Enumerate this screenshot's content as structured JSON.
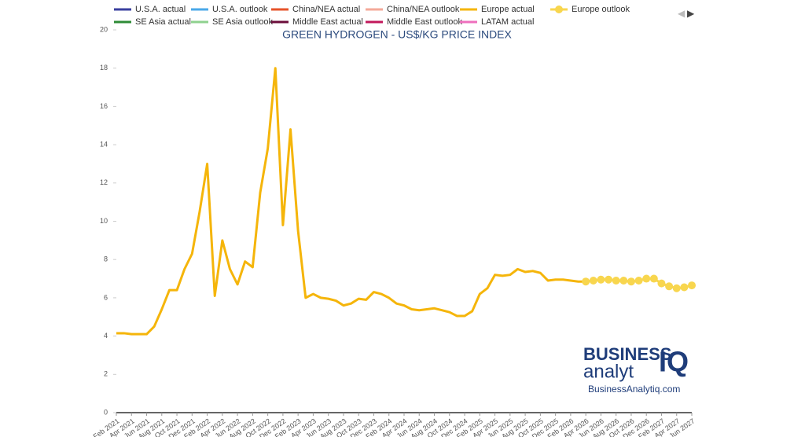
{
  "chart_data": {
    "type": "line",
    "title": "GREEN HYDROGEN - US$/KG PRICE INDEX",
    "categories": [
      "Feb 2021",
      null,
      "Apr 2021",
      null,
      "Jun 2021",
      null,
      "Aug 2021",
      null,
      "Oct 2021",
      null,
      "Dec 2021",
      null,
      "Feb 2022",
      null,
      "Apr 2022",
      null,
      "Jun 2022",
      null,
      "Aug 2022",
      null,
      "Oct 2022",
      null,
      "Dec 2022",
      null,
      "Feb 2023",
      null,
      "Apr 2023",
      null,
      "Jun 2023",
      null,
      "Aug 2023",
      null,
      "Oct 2023",
      null,
      "Dec 2023",
      null,
      "Feb 2024",
      null,
      "Apr 2024",
      null,
      "Jun 2024",
      null,
      "Aug 2024",
      null,
      "Oct 2024",
      null,
      "Dec 2024",
      null,
      "Feb 2025",
      null,
      "Apr 2025",
      null,
      "Jun 2025",
      null,
      "Aug 2025",
      null,
      "Oct 2025",
      null,
      "Dec 2025",
      null,
      "Feb 2026",
      null,
      "Apr 2026",
      null,
      "Jun 2026",
      null,
      "Aug 2026",
      null,
      "Oct 2026",
      null,
      "Dec 2026",
      null,
      "Feb 2027",
      null,
      "Apr 2027",
      null,
      "Jun 2027"
    ],
    "ylim": [
      0,
      20
    ],
    "yticks": [
      0,
      2,
      4,
      6,
      8,
      10,
      12,
      14,
      16,
      18,
      20
    ],
    "series": [
      {
        "name": "U.S.A. actual",
        "color": "#3a3f9f",
        "values": [
          null,
          null,
          null,
          null,
          null,
          null,
          null,
          null,
          null,
          null,
          null,
          null,
          null,
          null,
          null,
          null,
          null,
          null,
          null,
          null,
          null,
          null,
          null,
          null,
          null,
          null,
          null,
          null,
          null,
          null,
          null,
          null,
          null,
          null,
          null,
          null,
          null,
          null,
          null,
          null,
          null,
          null,
          null,
          null,
          null,
          null,
          null,
          null,
          null,
          null,
          null,
          null,
          null,
          null,
          null,
          null,
          null,
          null,
          null,
          null,
          null,
          null,
          null,
          null,
          null,
          null,
          null,
          null,
          null,
          null,
          null,
          null,
          null,
          null,
          null,
          null,
          null
        ]
      },
      {
        "name": "U.S.A. outlook",
        "color": "#4aa8e8",
        "values": [
          null,
          null,
          null,
          null,
          null,
          null,
          null,
          null,
          null,
          null,
          null,
          null,
          null,
          null,
          null,
          null,
          null,
          null,
          null,
          null,
          null,
          null,
          null,
          null,
          null,
          null,
          null,
          null,
          null,
          null,
          null,
          null,
          null,
          null,
          null,
          null,
          null,
          null,
          null,
          null,
          null,
          null,
          null,
          null,
          null,
          null,
          null,
          null,
          null,
          null,
          null,
          null,
          null,
          null,
          null,
          null,
          null,
          null,
          null,
          null,
          null,
          null,
          null,
          null,
          null,
          null,
          null,
          null,
          null,
          null,
          null,
          null,
          null,
          null,
          null,
          null,
          null
        ]
      },
      {
        "name": "China/NEA actual",
        "color": "#e6532a",
        "values": [
          null,
          null,
          null,
          null,
          null,
          null,
          null,
          null,
          null,
          null,
          null,
          null,
          null,
          null,
          null,
          null,
          null,
          null,
          null,
          null,
          null,
          null,
          null,
          null,
          null,
          null,
          null,
          null,
          null,
          null,
          null,
          null,
          null,
          null,
          null,
          null,
          null,
          null,
          null,
          null,
          null,
          null,
          null,
          null,
          null,
          null,
          null,
          null,
          null,
          null,
          null,
          null,
          null,
          null,
          null,
          null,
          null,
          null,
          null,
          null,
          null,
          null,
          null,
          null,
          null,
          null,
          null,
          null,
          null,
          null,
          null,
          null,
          null,
          null,
          null,
          null,
          null
        ]
      },
      {
        "name": "China/NEA outlook",
        "color": "#f4a99a",
        "values": [
          null,
          null,
          null,
          null,
          null,
          null,
          null,
          null,
          null,
          null,
          null,
          null,
          null,
          null,
          null,
          null,
          null,
          null,
          null,
          null,
          null,
          null,
          null,
          null,
          null,
          null,
          null,
          null,
          null,
          null,
          null,
          null,
          null,
          null,
          null,
          null,
          null,
          null,
          null,
          null,
          null,
          null,
          null,
          null,
          null,
          null,
          null,
          null,
          null,
          null,
          null,
          null,
          null,
          null,
          null,
          null,
          null,
          null,
          null,
          null,
          null,
          null,
          null,
          null,
          null,
          null,
          null,
          null,
          null,
          null,
          null,
          null,
          null,
          null,
          null,
          null,
          null
        ]
      },
      {
        "name": "Europe actual",
        "color": "#f5b50a",
        "values": [
          4.15,
          4.15,
          4.1,
          4.1,
          4.1,
          4.5,
          5.4,
          6.4,
          6.4,
          7.5,
          8.3,
          10.5,
          13.0,
          6.1,
          9.0,
          7.5,
          6.7,
          7.9,
          7.6,
          11.5,
          13.8,
          18.0,
          9.8,
          14.8,
          9.5,
          6.0,
          6.2,
          6.0,
          5.95,
          5.85,
          5.6,
          5.7,
          5.95,
          5.9,
          6.3,
          6.2,
          6.0,
          5.7,
          5.6,
          5.4,
          5.35,
          5.4,
          5.45,
          5.35,
          5.25,
          5.05,
          5.05,
          5.3,
          6.2,
          6.5,
          7.2,
          7.15,
          7.2,
          7.5,
          7.35,
          7.4,
          7.3,
          6.9,
          6.95,
          6.95,
          6.9,
          6.85,
          6.85,
          null,
          null,
          null,
          null,
          null,
          null,
          null,
          null,
          null,
          null,
          null,
          null,
          null,
          null
        ]
      },
      {
        "name": "Europe outlook",
        "color": "#f8d64e",
        "values": [
          null,
          null,
          null,
          null,
          null,
          null,
          null,
          null,
          null,
          null,
          null,
          null,
          null,
          null,
          null,
          null,
          null,
          null,
          null,
          null,
          null,
          null,
          null,
          null,
          null,
          null,
          null,
          null,
          null,
          null,
          null,
          null,
          null,
          null,
          null,
          null,
          null,
          null,
          null,
          null,
          null,
          null,
          null,
          null,
          null,
          null,
          null,
          null,
          null,
          null,
          null,
          null,
          null,
          null,
          null,
          null,
          null,
          null,
          null,
          null,
          null,
          null,
          6.85,
          6.9,
          6.95,
          6.95,
          6.9,
          6.9,
          6.85,
          6.9,
          7.0,
          7.0,
          6.75,
          6.6,
          6.5,
          6.55,
          6.65
        ]
      },
      {
        "name": "SE Asia actual",
        "color": "#2e8b36",
        "values": [
          null,
          null,
          null,
          null,
          null,
          null,
          null,
          null,
          null,
          null,
          null,
          null,
          null,
          null,
          null,
          null,
          null,
          null,
          null,
          null,
          null,
          null,
          null,
          null,
          null,
          null,
          null,
          null,
          null,
          null,
          null,
          null,
          null,
          null,
          null,
          null,
          null,
          null,
          null,
          null,
          null,
          null,
          null,
          null,
          null,
          null,
          null,
          null,
          null,
          null,
          null,
          null,
          null,
          null,
          null,
          null,
          null,
          null,
          null,
          null,
          null,
          null,
          null,
          null,
          null,
          null,
          null,
          null,
          null,
          null,
          null,
          null,
          null,
          null,
          null,
          null,
          null
        ]
      },
      {
        "name": "SE Asia outlook",
        "color": "#8fd18f",
        "values": [
          null,
          null,
          null,
          null,
          null,
          null,
          null,
          null,
          null,
          null,
          null,
          null,
          null,
          null,
          null,
          null,
          null,
          null,
          null,
          null,
          null,
          null,
          null,
          null,
          null,
          null,
          null,
          null,
          null,
          null,
          null,
          null,
          null,
          null,
          null,
          null,
          null,
          null,
          null,
          null,
          null,
          null,
          null,
          null,
          null,
          null,
          null,
          null,
          null,
          null,
          null,
          null,
          null,
          null,
          null,
          null,
          null,
          null,
          null,
          null,
          null,
          null,
          null,
          null,
          null,
          null,
          null,
          null,
          null,
          null,
          null,
          null,
          null,
          null,
          null,
          null,
          null
        ]
      },
      {
        "name": "Middle East actual",
        "color": "#6b0d3a",
        "values": [
          null,
          null,
          null,
          null,
          null,
          null,
          null,
          null,
          null,
          null,
          null,
          null,
          null,
          null,
          null,
          null,
          null,
          null,
          null,
          null,
          null,
          null,
          null,
          null,
          null,
          null,
          null,
          null,
          null,
          null,
          null,
          null,
          null,
          null,
          null,
          null,
          null,
          null,
          null,
          null,
          null,
          null,
          null,
          null,
          null,
          null,
          null,
          null,
          null,
          null,
          null,
          null,
          null,
          null,
          null,
          null,
          null,
          null,
          null,
          null,
          null,
          null,
          null,
          null,
          null,
          null,
          null,
          null,
          null,
          null,
          null,
          null,
          null,
          null,
          null,
          null,
          null
        ]
      },
      {
        "name": "Middle East outlook",
        "color": "#c2185b",
        "values": [
          null,
          null,
          null,
          null,
          null,
          null,
          null,
          null,
          null,
          null,
          null,
          null,
          null,
          null,
          null,
          null,
          null,
          null,
          null,
          null,
          null,
          null,
          null,
          null,
          null,
          null,
          null,
          null,
          null,
          null,
          null,
          null,
          null,
          null,
          null,
          null,
          null,
          null,
          null,
          null,
          null,
          null,
          null,
          null,
          null,
          null,
          null,
          null,
          null,
          null,
          null,
          null,
          null,
          null,
          null,
          null,
          null,
          null,
          null,
          null,
          null,
          null,
          null,
          null,
          null,
          null,
          null,
          null,
          null,
          null,
          null,
          null,
          null,
          null,
          null,
          null,
          null
        ]
      },
      {
        "name": "LATAM actual",
        "color": "#ee6fbd",
        "values": [
          null,
          null,
          null,
          null,
          null,
          null,
          null,
          null,
          null,
          null,
          null,
          null,
          null,
          null,
          null,
          null,
          null,
          null,
          null,
          null,
          null,
          null,
          null,
          null,
          null,
          null,
          null,
          null,
          null,
          null,
          null,
          null,
          null,
          null,
          null,
          null,
          null,
          null,
          null,
          null,
          null,
          null,
          null,
          null,
          null,
          null,
          null,
          null,
          null,
          null,
          null,
          null,
          null,
          null,
          null,
          null,
          null,
          null,
          null,
          null,
          null,
          null,
          null,
          null,
          null,
          null,
          null,
          null,
          null,
          null,
          null,
          null,
          null,
          null,
          null,
          null,
          null
        ]
      }
    ],
    "markers": [
      false,
      false,
      false,
      false,
      false,
      true,
      false,
      false,
      false,
      false,
      false
    ]
  },
  "logo": {
    "line1": "BUSINESS",
    "line2": "analyt",
    "mark": "IQ",
    "url": "BusinessAnalytiq.com"
  }
}
